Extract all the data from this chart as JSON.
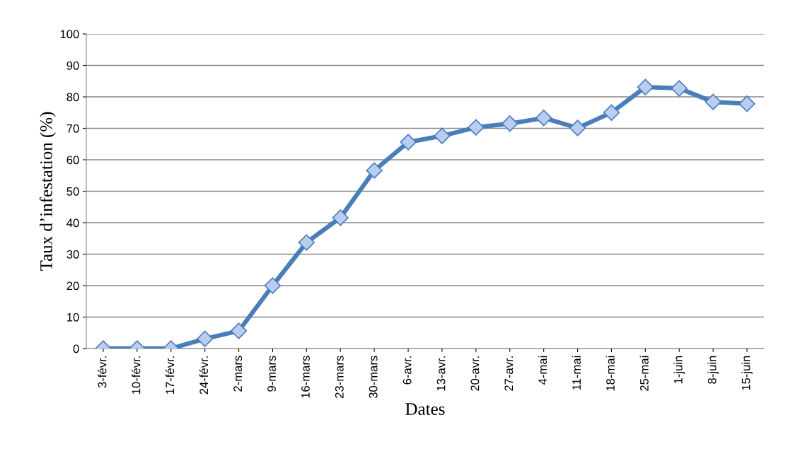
{
  "chart_data": {
    "type": "line",
    "xlabel": "Dates",
    "ylabel": "Taux d’infestation (%)",
    "categories": [
      "3-févr.",
      "10-févr.",
      "17-févr.",
      "24-févr.",
      "2-mars",
      "9-mars",
      "16-mars",
      "23-mars",
      "30-mars",
      "6-avr.",
      "13-avr.",
      "20-avr.",
      "27-avr.",
      "4-mai",
      "11-mai",
      "18-mai",
      "25-mai",
      "1-juin",
      "8-juin",
      "15-juin"
    ],
    "series": [
      {
        "color": "#4a7ebb",
        "values": [
          0,
          0,
          0,
          3.1,
          5.6,
          20,
          33.7,
          41.6,
          56.6,
          65.6,
          67.6,
          70.3,
          71.5,
          73.3,
          70.1,
          75,
          83.1,
          82.7,
          78.4,
          77.8
        ]
      }
    ],
    "ylim": [
      0,
      100
    ],
    "yticks": [
      0,
      10,
      20,
      30,
      40,
      50,
      60,
      70,
      80,
      90,
      100
    ],
    "grid": "y",
    "marker": "diamond",
    "line_style": "solid"
  }
}
